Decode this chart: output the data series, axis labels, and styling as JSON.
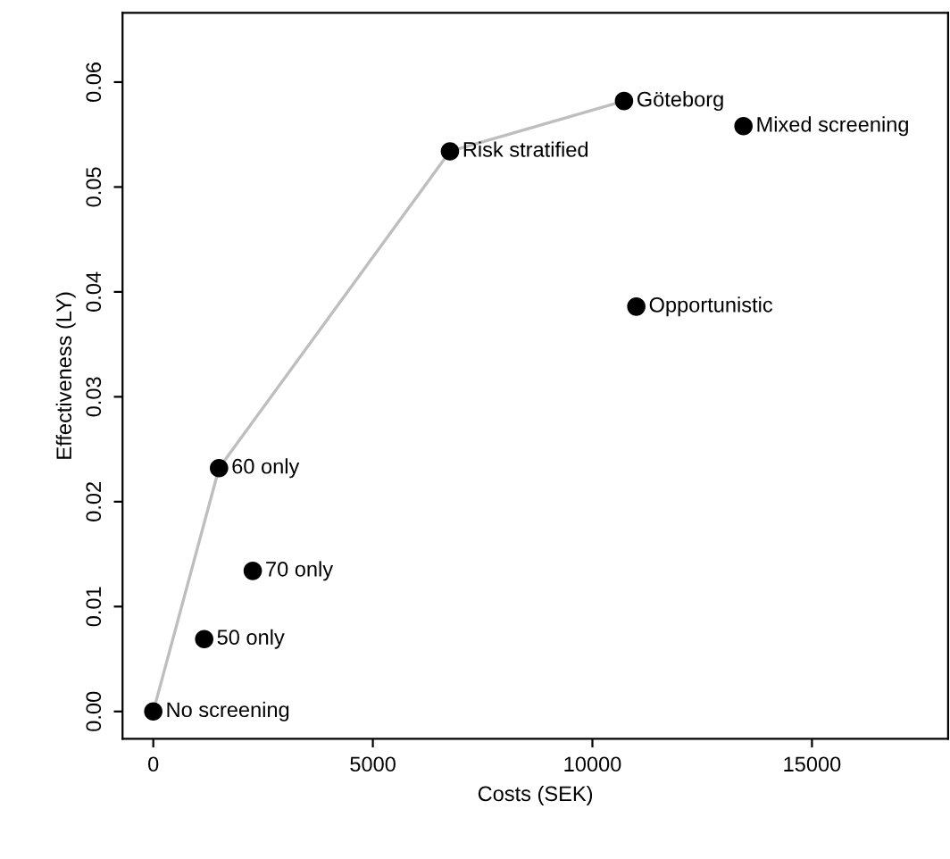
{
  "chart_data": {
    "type": "scatter",
    "xlabel": "Costs (SEK)",
    "ylabel": "Effectiveness (LY)",
    "series": [
      {
        "type": "line",
        "color": "#bebebe",
        "marker": "none",
        "x": [
          0,
          1497,
          6756,
          10720
        ],
        "values": [
          0,
          0.0232,
          0.0534,
          0.0582
        ]
      },
      {
        "color": "#000000",
        "marker": "circle",
        "x": [
          0,
          1160,
          1497,
          2265,
          6756,
          10720,
          13440,
          11000
        ],
        "values": [
          0,
          0.0069,
          0.0232,
          0.0134,
          0.0534,
          0.0582,
          0.0558,
          0.0386
        ]
      }
    ],
    "annotations": [
      {
        "text": "No screening",
        "x": 0,
        "y": 0
      },
      {
        "text": "50 only",
        "x": 1160,
        "y": 0.0069
      },
      {
        "text": "60 only",
        "x": 1497,
        "y": 0.0232
      },
      {
        "text": "70 only",
        "x": 2265,
        "y": 0.0134
      },
      {
        "text": "Risk stratified",
        "x": 6756,
        "y": 0.0534
      },
      {
        "text": "Göteborg",
        "x": 10720,
        "y": 0.0582
      },
      {
        "text": "Mixed screening",
        "x": 13440,
        "y": 0.0558
      },
      {
        "text": "Opportunistic",
        "x": 11000,
        "y": 0.0386
      }
    ],
    "xlim": [
      -700,
      18100
    ],
    "ylim": [
      -0.0026,
      0.0666
    ],
    "xticks": [
      0,
      5000,
      10000,
      15000
    ],
    "yticks": [
      {
        "value": 0,
        "label": "0.00"
      },
      {
        "value": 0.01,
        "label": "0.01"
      },
      {
        "value": 0.02,
        "label": "0.02"
      },
      {
        "value": 0.03,
        "label": "0.03"
      },
      {
        "value": 0.04,
        "label": "0.04"
      },
      {
        "value": 0.05,
        "label": "0.05"
      },
      {
        "value": 0.06,
        "label": "0.06"
      }
    ],
    "grid": false,
    "legend": false
  }
}
